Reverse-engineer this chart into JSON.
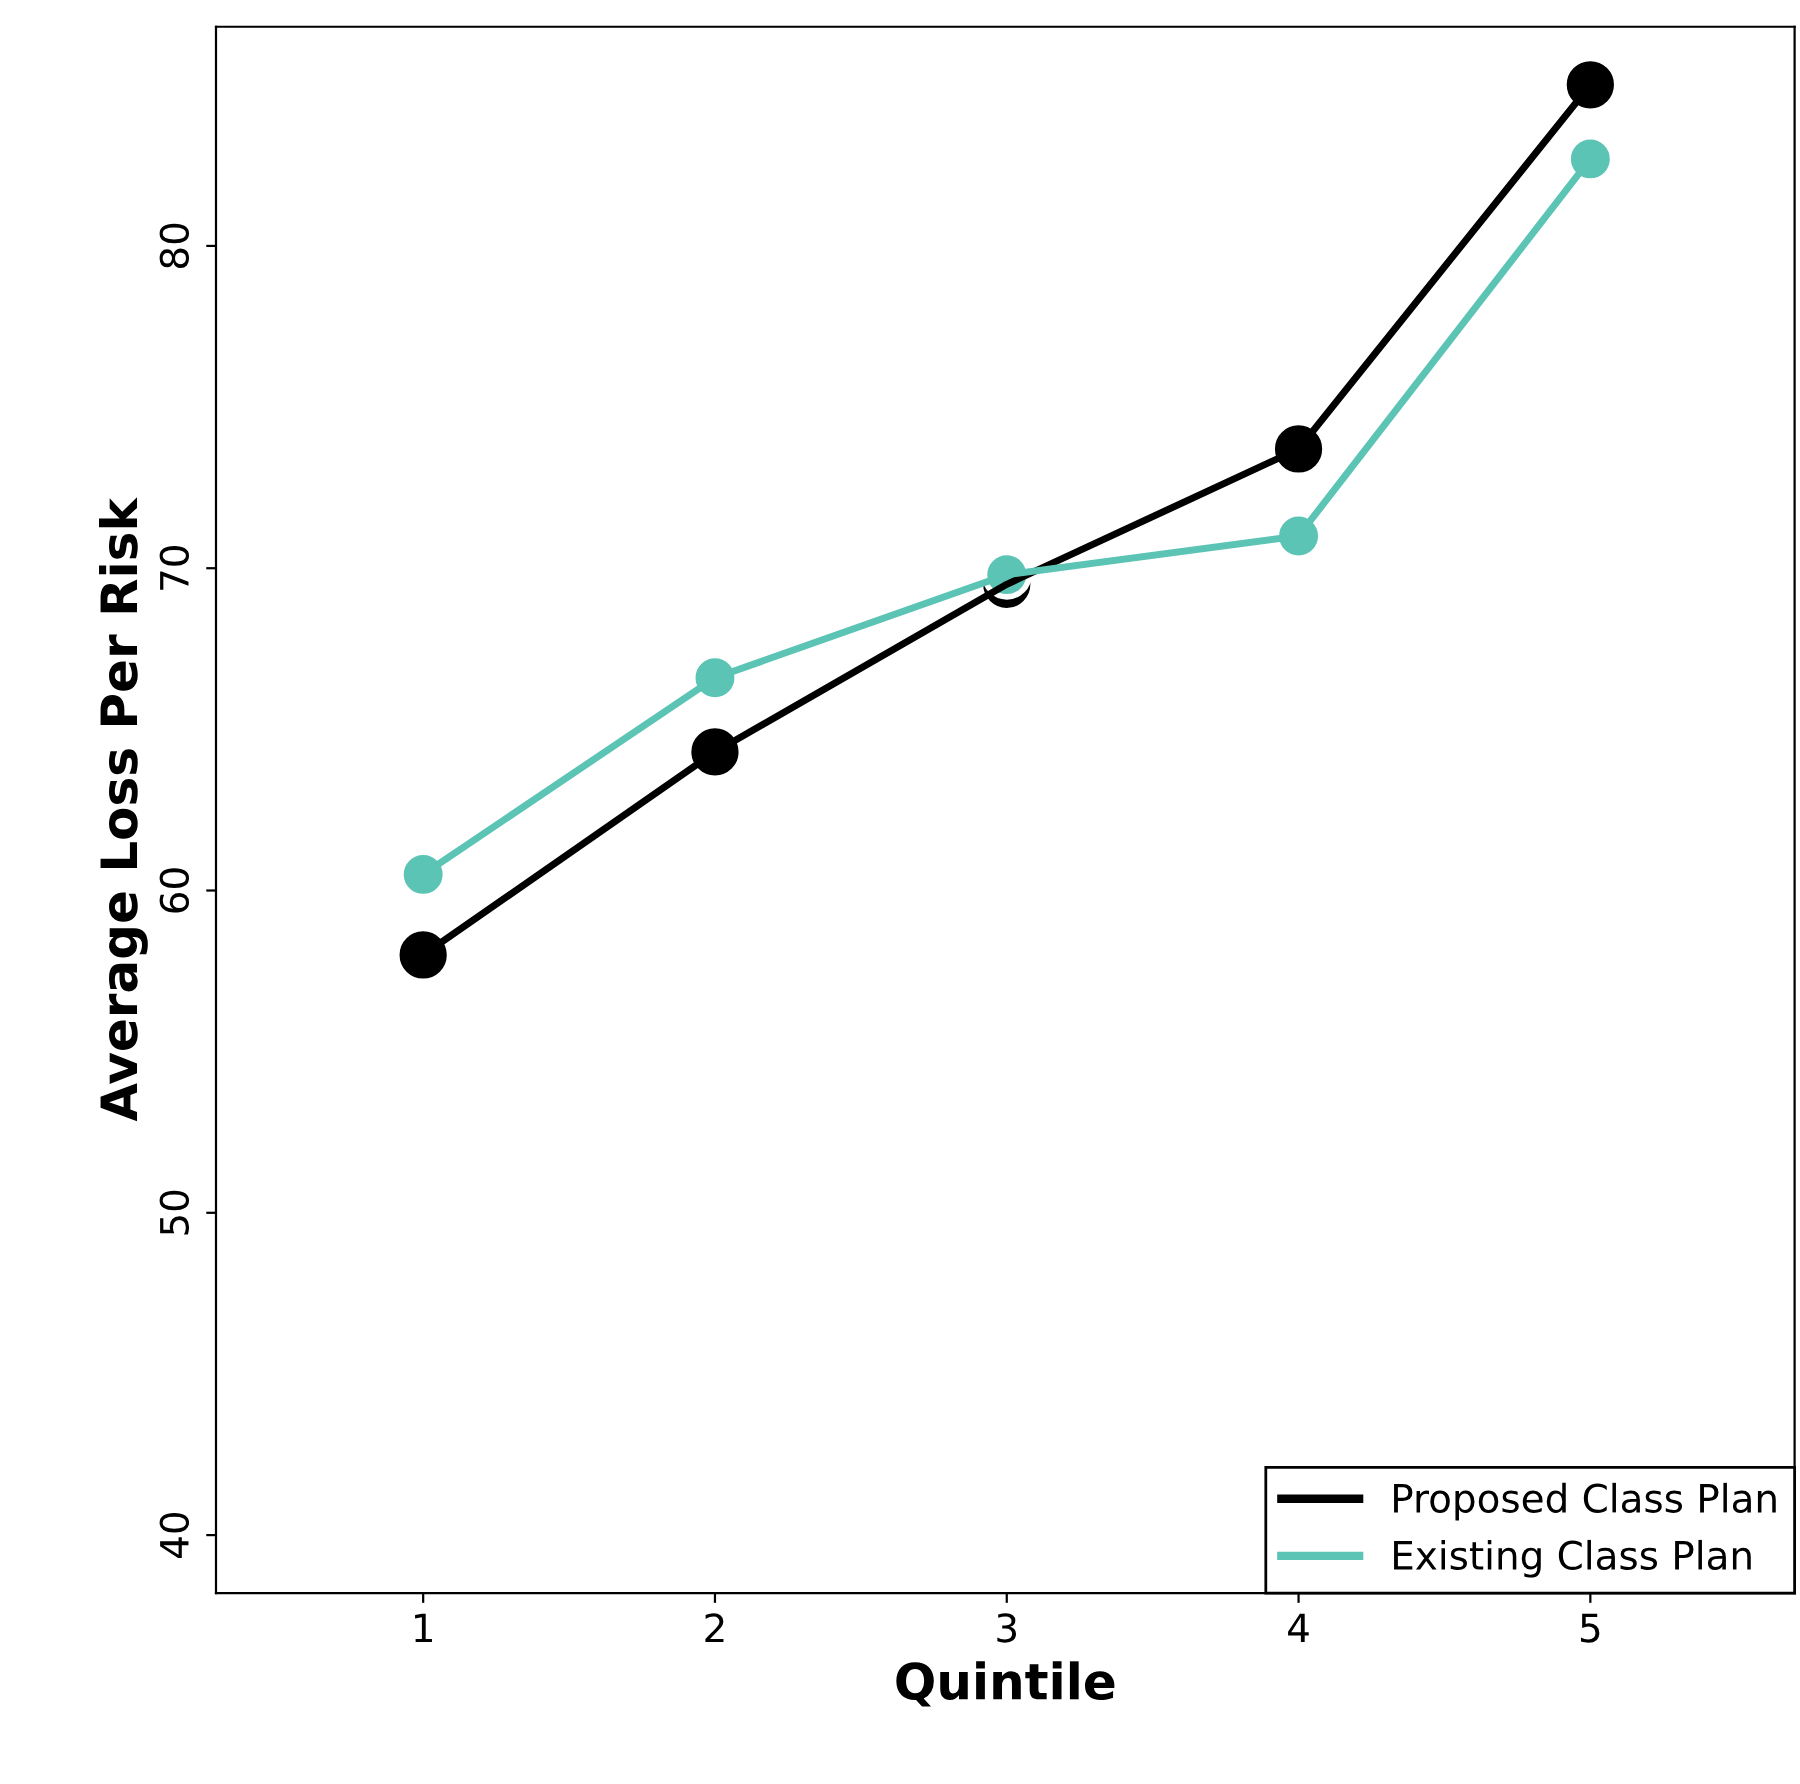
{
  "chart_data": {
    "type": "line",
    "xlabel": "Quintile",
    "ylabel": "Average Loss Per Risk",
    "x": [
      1,
      2,
      3,
      4,
      5
    ],
    "series": [
      {
        "name": "Proposed Class Plan",
        "color": "#000000",
        "values": [
          58.0,
          64.3,
          69.5,
          73.7,
          85.0
        ]
      },
      {
        "name": "Existing Class Plan",
        "color": "#5bc4b4",
        "values": [
          60.5,
          66.6,
          69.8,
          71.0,
          82.7
        ]
      }
    ],
    "xlim": [
      0.29,
      5.7
    ],
    "ylim": [
      38.2,
      86.8
    ],
    "xticks": [
      1,
      2,
      3,
      4,
      5
    ],
    "yticks": [
      40,
      50,
      60,
      70,
      80
    ],
    "marker": "circle",
    "line_style": "solid",
    "legend": "bottom right",
    "grid": false
  }
}
